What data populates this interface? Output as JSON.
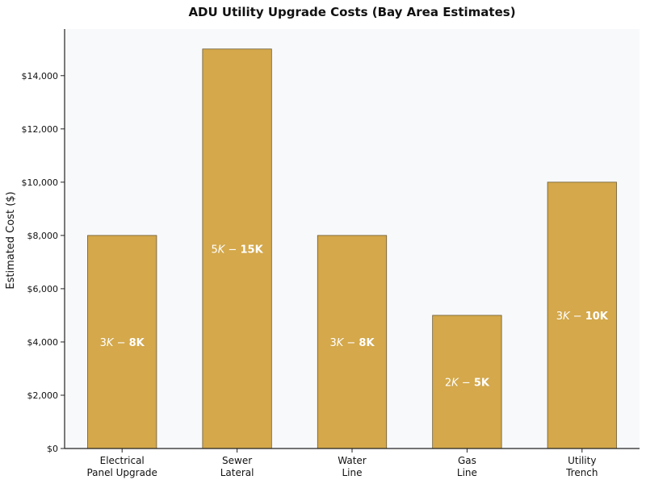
{
  "chart_data": {
    "type": "bar",
    "title": "ADU Utility Upgrade Costs (Bay Area Estimates)",
    "xlabel": "",
    "ylabel": "Estimated Cost ($)",
    "ylim": [
      0,
      15750
    ],
    "yticks": [
      0,
      2000,
      4000,
      6000,
      8000,
      10000,
      12000,
      14000
    ],
    "ytick_labels": [
      "$0",
      "$2,000",
      "$4,000",
      "$6,000",
      "$8,000",
      "$10,000",
      "$12,000",
      "$14,000"
    ],
    "categories": [
      [
        "Electrical",
        "Panel Upgrade"
      ],
      [
        "Sewer",
        "Lateral"
      ],
      [
        "Water",
        "Line"
      ],
      [
        "Gas",
        "Line"
      ],
      [
        "Utility",
        "Trench"
      ]
    ],
    "values": [
      8000,
      15000,
      8000,
      5000,
      10000
    ],
    "bar_labels": [
      {
        "low": "3K",
        "high": "8K"
      },
      {
        "low": "5K",
        "high": "15K"
      },
      {
        "low": "3K",
        "high": "8K"
      },
      {
        "low": "2K",
        "high": "5K"
      },
      {
        "low": "3K",
        "high": "10K"
      }
    ],
    "grid": false,
    "colors": {
      "bar": "#d4a84b",
      "bar_edge": "#6b5a33",
      "plot_bg": "#f8f9fb",
      "axis": "#222222",
      "bar_text": "#ffffff"
    }
  }
}
